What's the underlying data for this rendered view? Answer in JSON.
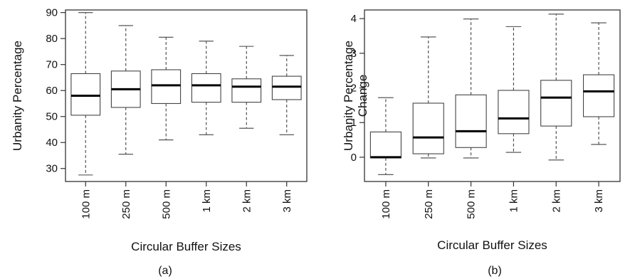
{
  "chart_data": [
    {
      "type": "box",
      "panel_label": "(a)",
      "xlabel": "Circular Buffer Sizes",
      "ylabel_lines": [
        "Urbanity Percentage"
      ],
      "categories": [
        "100 m",
        "250 m",
        "500 m",
        "1 km",
        "2 km",
        "3 km"
      ],
      "yticks": [
        30,
        40,
        50,
        60,
        70,
        80,
        90
      ],
      "ylim": [
        25,
        91
      ],
      "boxes": [
        {
          "min": 27.5,
          "q1": 50.5,
          "median": 58,
          "q3": 66.5,
          "max": 90
        },
        {
          "min": 35.5,
          "q1": 53.5,
          "median": 60.5,
          "q3": 67.5,
          "max": 85
        },
        {
          "min": 41,
          "q1": 55,
          "median": 62,
          "q3": 68,
          "max": 80.5
        },
        {
          "min": 43,
          "q1": 55.5,
          "median": 62,
          "q3": 66.5,
          "max": 79
        },
        {
          "min": 45.5,
          "q1": 55.5,
          "median": 61.5,
          "q3": 64.5,
          "max": 77
        },
        {
          "min": 43,
          "q1": 56.5,
          "median": 61.5,
          "q3": 65.5,
          "max": 73.5
        }
      ]
    },
    {
      "type": "box",
      "panel_label": "(b)",
      "xlabel": "Circular Buffer Sizes",
      "ylabel_lines": [
        "Urbanity Percentage",
        "Change"
      ],
      "categories": [
        "100 m",
        "250 m",
        "500 m",
        "1 km",
        "2 km",
        "3 km"
      ],
      "yticks": [
        0,
        1,
        2,
        3,
        4
      ],
      "ylim": [
        -0.7,
        4.25
      ],
      "boxes": [
        {
          "min": -0.5,
          "q1": -0.02,
          "median": 0,
          "q3": 0.73,
          "max": 1.72
        },
        {
          "min": -0.02,
          "q1": 0.1,
          "median": 0.57,
          "q3": 1.56,
          "max": 3.47
        },
        {
          "min": -0.02,
          "q1": 0.28,
          "median": 0.75,
          "q3": 1.8,
          "max": 3.99
        },
        {
          "min": 0.14,
          "q1": 0.68,
          "median": 1.12,
          "q3": 1.93,
          "max": 3.77
        },
        {
          "min": -0.08,
          "q1": 0.9,
          "median": 1.72,
          "q3": 2.22,
          "max": 4.13
        },
        {
          "min": 0.37,
          "q1": 1.17,
          "median": 1.9,
          "q3": 2.38,
          "max": 3.88
        }
      ]
    }
  ]
}
